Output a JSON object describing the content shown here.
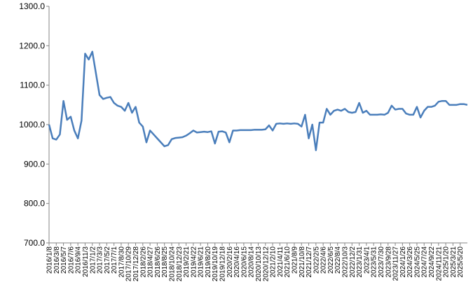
{
  "chart_data": {
    "type": "line",
    "categories": [
      "2016/1/8",
      null,
      "2016/3/8",
      null,
      "2016/5/7",
      null,
      "2016/7/6",
      null,
      "2016/9/4",
      null,
      "2016/11/3",
      null,
      "2017/1/2",
      null,
      "2017/3/3",
      null,
      "2017/5/2",
      null,
      "2017/7/1",
      null,
      "2017/8/30",
      null,
      "2017/10/29",
      null,
      "2017/12/28",
      null,
      "2018/2/26",
      null,
      "2018/4/27",
      null,
      "2018/6/26",
      null,
      "2018/8/25",
      null,
      "2018/10/24",
      null,
      "2018/12/23",
      null,
      "2019/2/21",
      null,
      "2019/4/22",
      null,
      "2019/6/21",
      null,
      "2019/8/20",
      null,
      "2019/10/19",
      null,
      "2019/12/18",
      null,
      "2020/2/16",
      null,
      "2020/4/16",
      null,
      "2020/6/15",
      null,
      "2020/8/14",
      null,
      "2020/10/13",
      null,
      "2020/12/12",
      null,
      "2021/2/10",
      null,
      "2021/4/11",
      null,
      "2021/6/10",
      null,
      "2021/8/9",
      null,
      "2021/10/8",
      null,
      "2021/12/7",
      null,
      "2022/2/5",
      null,
      "2022/4/6",
      null,
      "2022/6/5",
      null,
      "2022/8/4",
      null,
      "2022/10/3",
      null,
      "2022/12/2",
      null,
      "2023/1/31",
      null,
      "2023/4/1",
      null,
      "2023/5/31",
      null,
      "2023/7/30",
      null,
      "2023/9/28",
      null,
      "2023/11/27",
      null,
      "2024/1/26",
      null,
      "2024/3/26",
      null,
      "2024/5/25",
      null,
      "2024/7/24",
      null,
      "2024/9/22",
      null,
      "2024/11/21",
      null,
      "2025/1/20",
      null,
      "2025/3/21",
      null,
      "2025/5/20",
      null,
      null
    ],
    "series": [
      {
        "color": "#4a7ebb",
        "values": [
          1000,
          965,
          962,
          975,
          1060,
          1012,
          1020,
          985,
          965,
          1010,
          1180,
          1165,
          1185,
          1130,
          1075,
          1065,
          1068,
          1070,
          1055,
          1048,
          1045,
          1035,
          1055,
          1030,
          1045,
          1005,
          995,
          955,
          985,
          975,
          965,
          955,
          945,
          948,
          963,
          966,
          967,
          968,
          972,
          978,
          985,
          980,
          981,
          982,
          981,
          983,
          952,
          982,
          983,
          980,
          955,
          985,
          985,
          986,
          986,
          986,
          986,
          987,
          987,
          987,
          988,
          998,
          985,
          1002,
          1003,
          1002,
          1003,
          1002,
          1003,
          1002,
          995,
          1025,
          965,
          1000,
          935,
          1005,
          1005,
          1040,
          1025,
          1035,
          1038,
          1035,
          1040,
          1032,
          1030,
          1032,
          1055,
          1030,
          1035,
          1025,
          1025,
          1025,
          1026,
          1025,
          1030,
          1048,
          1038,
          1040,
          1040,
          1028,
          1025,
          1025,
          1045,
          1018,
          1035,
          1045,
          1045,
          1048,
          1058,
          1060,
          1060,
          1050,
          1050,
          1050,
          1052,
          1052,
          1050
        ]
      }
    ],
    "ylim": [
      700,
      1300
    ],
    "yticks": [
      {
        "value": 700,
        "label": "700.0"
      },
      {
        "value": 800,
        "label": "800.0"
      },
      {
        "value": 900,
        "label": "900.0"
      },
      {
        "value": 1000,
        "label": "1000.0"
      },
      {
        "value": 1100,
        "label": "1100.0"
      },
      {
        "value": 1200,
        "label": "1200.0"
      },
      {
        "value": 1300,
        "label": "1300.0"
      }
    ],
    "grid": false
  }
}
